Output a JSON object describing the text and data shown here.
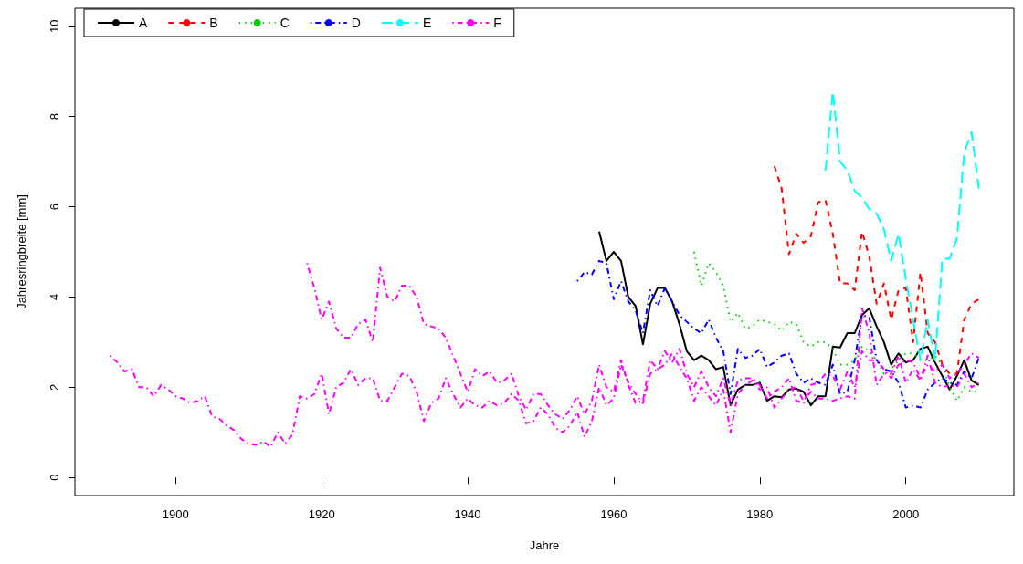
{
  "chart_data": {
    "type": "line",
    "xlabel": "Jahre",
    "ylabel": "Jahresringbreite [mm]",
    "xlim": [
      1886.2,
      2014.8
    ],
    "ylim": [
      -0.4,
      10.4
    ],
    "xticks": [
      1900,
      1920,
      1940,
      1960,
      1980,
      2000
    ],
    "yticks": [
      0,
      2,
      4,
      6,
      8,
      10
    ],
    "grid": false,
    "legend": "top left",
    "marker": "none",
    "series": [
      {
        "name": "A",
        "color": "#000000",
        "line_style": "solid",
        "x": [
          1958,
          1959,
          1960,
          1961,
          1962,
          1963,
          1964,
          1965,
          1966,
          1967,
          1968,
          1969,
          1970,
          1971,
          1972,
          1973,
          1974,
          1975,
          1976,
          1977,
          1978,
          1979,
          1980,
          1981,
          1982,
          1983,
          1984,
          1985,
          1986,
          1987,
          1988,
          1989,
          1990,
          1991,
          1992,
          1993,
          1994,
          1995,
          1996,
          1997,
          1998,
          1999,
          2000,
          2001,
          2002,
          2003,
          2004,
          2005,
          2006,
          2007,
          2008,
          2009,
          2010
        ],
        "values": [
          5.45,
          4.8,
          5.0,
          4.8,
          4.0,
          3.8,
          2.95,
          3.85,
          4.2,
          4.2,
          3.9,
          3.4,
          2.8,
          2.6,
          2.7,
          2.6,
          2.4,
          2.45,
          1.6,
          1.95,
          2.05,
          2.05,
          2.1,
          1.7,
          1.8,
          1.78,
          1.95,
          1.97,
          1.9,
          1.6,
          1.8,
          1.8,
          2.9,
          2.88,
          3.2,
          3.2,
          3.6,
          3.75,
          3.35,
          3.0,
          2.5,
          2.75,
          2.55,
          2.6,
          2.85,
          2.9,
          2.55,
          2.25,
          1.95,
          2.25,
          2.6,
          2.15,
          2.05
        ]
      },
      {
        "name": "B",
        "color": "#ff0000",
        "line_style": "dashed",
        "x": [
          1982,
          1983,
          1984,
          1985,
          1986,
          1987,
          1988,
          1989,
          1990,
          1991,
          1992,
          1993,
          1994,
          1995,
          1996,
          1997,
          1998,
          1999,
          2000,
          2001,
          2002,
          2003,
          2004,
          2005,
          2006,
          2007,
          2008,
          2009,
          2010
        ],
        "values": [
          6.9,
          6.4,
          4.95,
          5.4,
          5.2,
          5.35,
          6.1,
          6.15,
          5.4,
          4.3,
          4.3,
          4.15,
          5.45,
          4.9,
          3.85,
          4.3,
          3.5,
          4.15,
          4.2,
          3.0,
          4.55,
          3.2,
          3.0,
          2.5,
          2.3,
          2.3,
          3.5,
          3.85,
          3.95
        ]
      },
      {
        "name": "C",
        "color": "#00cd00",
        "line_style": "dotted",
        "x": [
          1971,
          1972,
          1973,
          1974,
          1975,
          1976,
          1977,
          1978,
          1979,
          1980,
          1981,
          1982,
          1983,
          1984,
          1985,
          1986,
          1987,
          1988,
          1989,
          1990,
          1991,
          1992,
          1993,
          1994,
          1995,
          1996,
          1997,
          1998,
          1999,
          2000,
          2001,
          2002,
          2003,
          2004,
          2005,
          2006,
          2007,
          2008,
          2009,
          2010
        ],
        "values": [
          5.0,
          4.25,
          4.75,
          4.55,
          4.25,
          3.45,
          3.65,
          3.3,
          3.35,
          3.5,
          3.45,
          3.4,
          3.25,
          3.45,
          3.4,
          3.0,
          2.9,
          3.0,
          3.0,
          2.85,
          2.5,
          2.5,
          2.6,
          2.9,
          2.8,
          2.6,
          2.3,
          2.4,
          2.6,
          2.75,
          2.75,
          2.6,
          2.6,
          2.7,
          2.5,
          2.0,
          1.7,
          2.0,
          1.9,
          1.9
        ]
      },
      {
        "name": "D",
        "color": "#0000ff",
        "line_style": "dashdot",
        "x": [
          1955,
          1956,
          1957,
          1958,
          1959,
          1960,
          1961,
          1962,
          1963,
          1964,
          1965,
          1966,
          1967,
          1968,
          1969,
          1970,
          1971,
          1972,
          1973,
          1974,
          1975,
          1976,
          1977,
          1978,
          1979,
          1980,
          1981,
          1982,
          1983,
          1984,
          1985,
          1986,
          1987,
          1988,
          1989,
          1990,
          1991,
          1992,
          1993,
          1994,
          1995,
          1996,
          1997,
          1998,
          1999,
          2000,
          2001,
          2002,
          2003,
          2004,
          2005,
          2006,
          2007,
          2008,
          2009,
          2010
        ],
        "values": [
          4.35,
          4.55,
          4.5,
          4.8,
          4.75,
          3.95,
          4.35,
          3.9,
          3.7,
          3.2,
          4.15,
          3.8,
          4.2,
          3.9,
          3.6,
          3.45,
          3.3,
          3.2,
          3.5,
          3.1,
          2.8,
          1.85,
          2.85,
          2.65,
          2.7,
          2.85,
          2.45,
          2.55,
          2.7,
          2.75,
          2.3,
          2.1,
          2.2,
          2.1,
          2.05,
          2.5,
          1.85,
          1.9,
          2.6,
          3.6,
          3.55,
          2.6,
          2.4,
          2.35,
          2.1,
          1.55,
          1.6,
          1.55,
          1.95,
          2.1,
          2.2,
          2.1,
          2.05,
          2.35,
          2.2,
          2.65
        ]
      },
      {
        "name": "E",
        "color": "#00ffff",
        "line_style": "longdash",
        "x": [
          1989,
          1990,
          1991,
          1992,
          1993,
          1994,
          1995,
          1996,
          1997,
          1998,
          1999,
          2000,
          2001,
          2002,
          2003,
          2004,
          2005,
          2006,
          2007,
          2008,
          2009,
          2010
        ],
        "values": [
          6.8,
          8.55,
          7.0,
          6.8,
          6.35,
          6.2,
          5.95,
          5.85,
          5.5,
          4.8,
          5.4,
          4.4,
          3.5,
          2.6,
          3.5,
          2.6,
          4.85,
          4.85,
          5.3,
          7.2,
          7.65,
          6.4
        ]
      },
      {
        "name": "F",
        "color": "#ff00ff",
        "line_style": "dashdot",
        "x": [
          1891,
          1892,
          1893,
          1894,
          1895,
          1896,
          1897,
          1898,
          1899,
          1900,
          1901,
          1902,
          1903,
          1904,
          1905,
          1906,
          1907,
          1908,
          1909,
          1910,
          1911,
          1912,
          1913,
          1914,
          1915,
          1916,
          1917,
          1918,
          1919,
          1920,
          1921,
          1922,
          1923,
          1924,
          1925,
          1926,
          1927,
          1928,
          1929,
          1930,
          1931,
          1932,
          1933,
          1934,
          1935,
          1936,
          1937,
          1938,
          1939,
          1940,
          1941,
          1942,
          1943,
          1944,
          1945,
          1946,
          1947,
          1948,
          1949,
          1950,
          1951,
          1952,
          1953,
          1954,
          1955,
          1956,
          1957,
          1958,
          1959,
          1960,
          1961,
          1962,
          1963,
          1964,
          1965,
          1966,
          1967,
          1968,
          1969,
          1970,
          1971,
          1972,
          1973,
          1974,
          1975,
          1976,
          1977,
          1978,
          1979,
          1980,
          1981,
          1982,
          1983,
          1984,
          1985,
          1986,
          1987,
          1988,
          1989,
          1990,
          1991,
          1992,
          1993,
          1994,
          1995,
          1996,
          1997,
          1998,
          1999,
          2000,
          2001,
          2002,
          2003,
          2004,
          2005,
          2006,
          2007,
          2008,
          2009,
          2010
        ],
        "values": [
          2.7,
          2.55,
          2.35,
          2.4,
          2.0,
          2.0,
          1.8,
          2.05,
          1.95,
          1.8,
          1.75,
          1.65,
          1.7,
          1.8,
          1.35,
          1.3,
          1.15,
          1.05,
          0.85,
          0.75,
          0.72,
          0.8,
          0.68,
          1.0,
          0.75,
          0.95,
          1.8,
          1.75,
          1.85,
          2.3,
          1.4,
          2.0,
          2.1,
          2.4,
          2.05,
          2.2,
          2.2,
          1.7,
          1.7,
          2.0,
          2.3,
          2.25,
          1.9,
          1.25,
          1.65,
          1.75,
          2.2,
          1.85,
          1.55,
          1.75,
          1.6,
          1.55,
          1.7,
          1.6,
          1.65,
          1.85,
          1.7,
          1.2,
          1.25,
          1.55,
          1.4,
          1.1,
          1.0,
          1.15,
          1.45,
          0.9,
          1.25,
          2.0,
          1.6,
          1.75,
          2.5,
          2.1,
          1.85,
          1.65,
          2.3,
          2.4,
          2.5,
          2.75,
          2.45,
          2.2,
          1.7,
          2.0,
          1.8,
          1.6,
          1.95,
          1.0,
          1.85,
          2.05,
          2.15,
          1.95,
          2.0,
          1.55,
          1.75,
          1.95,
          2.0,
          1.7,
          1.9,
          1.75,
          1.75,
          1.7,
          1.75,
          1.8,
          1.75,
          3.75,
          3.2,
          2.05,
          2.3,
          2.3,
          2.7,
          2.1,
          2.4,
          2.15,
          2.7,
          2.1,
          2.0,
          2.05,
          2.0,
          2.3,
          2.0,
          2.1
        ]
      },
      {
        "color": "#ff00ff",
        "line_style": "dashdot",
        "x": [
          1918,
          1919,
          1920,
          1921,
          1922,
          1923,
          1924,
          1925,
          1926,
          1927,
          1928,
          1929,
          1930,
          1931,
          1932,
          1933,
          1934,
          1935,
          1936,
          1937,
          1938,
          1939,
          1940,
          1941,
          1942,
          1943,
          1944,
          1945,
          1946,
          1947,
          1948,
          1949,
          1950,
          1951,
          1952,
          1953,
          1954,
          1955,
          1956,
          1957,
          1958,
          1959,
          1960,
          1961,
          1962,
          1963,
          1964,
          1965,
          1966,
          1967,
          1968,
          1969,
          1970,
          1971,
          1972,
          1973,
          1974,
          1975,
          1976,
          1977,
          1978,
          1979,
          1980,
          1981,
          1982,
          1983,
          1984,
          1985,
          1986,
          1987,
          1988,
          1989,
          1990,
          1991,
          1992,
          1993,
          1994,
          1995,
          1996,
          1997,
          1998,
          1999,
          2000,
          2001,
          2002,
          2003,
          2004,
          2005,
          2006,
          2007,
          2008,
          2009,
          2010
        ],
        "values": [
          4.75,
          4.2,
          3.5,
          3.9,
          3.3,
          3.1,
          3.1,
          3.4,
          3.5,
          3.0,
          4.65,
          4.0,
          3.9,
          4.25,
          4.25,
          4.0,
          3.4,
          3.35,
          3.3,
          3.1,
          2.7,
          2.3,
          1.9,
          2.4,
          2.25,
          2.35,
          2.1,
          2.15,
          2.3,
          1.8,
          1.5,
          1.85,
          1.85,
          1.6,
          1.4,
          1.3,
          1.5,
          1.8,
          1.4,
          1.7,
          2.5,
          2.0,
          1.9,
          2.6,
          2.05,
          1.65,
          1.7,
          2.6,
          2.4,
          2.8,
          2.55,
          2.85,
          2.3,
          2.0,
          2.35,
          2.0,
          1.8,
          2.2,
          1.6,
          2.15,
          2.2,
          2.2,
          2.05,
          1.75,
          1.9,
          2.0,
          2.2,
          1.7,
          1.65,
          2.05,
          2.1,
          2.3,
          2.25,
          1.95,
          2.35,
          2.0,
          2.8,
          2.6,
          2.6,
          2.4,
          2.2,
          2.5,
          2.6,
          2.55,
          2.2,
          2.5,
          2.35,
          2.5,
          2.2,
          2.3,
          2.5,
          2.75,
          2.65
        ]
      }
    ]
  }
}
